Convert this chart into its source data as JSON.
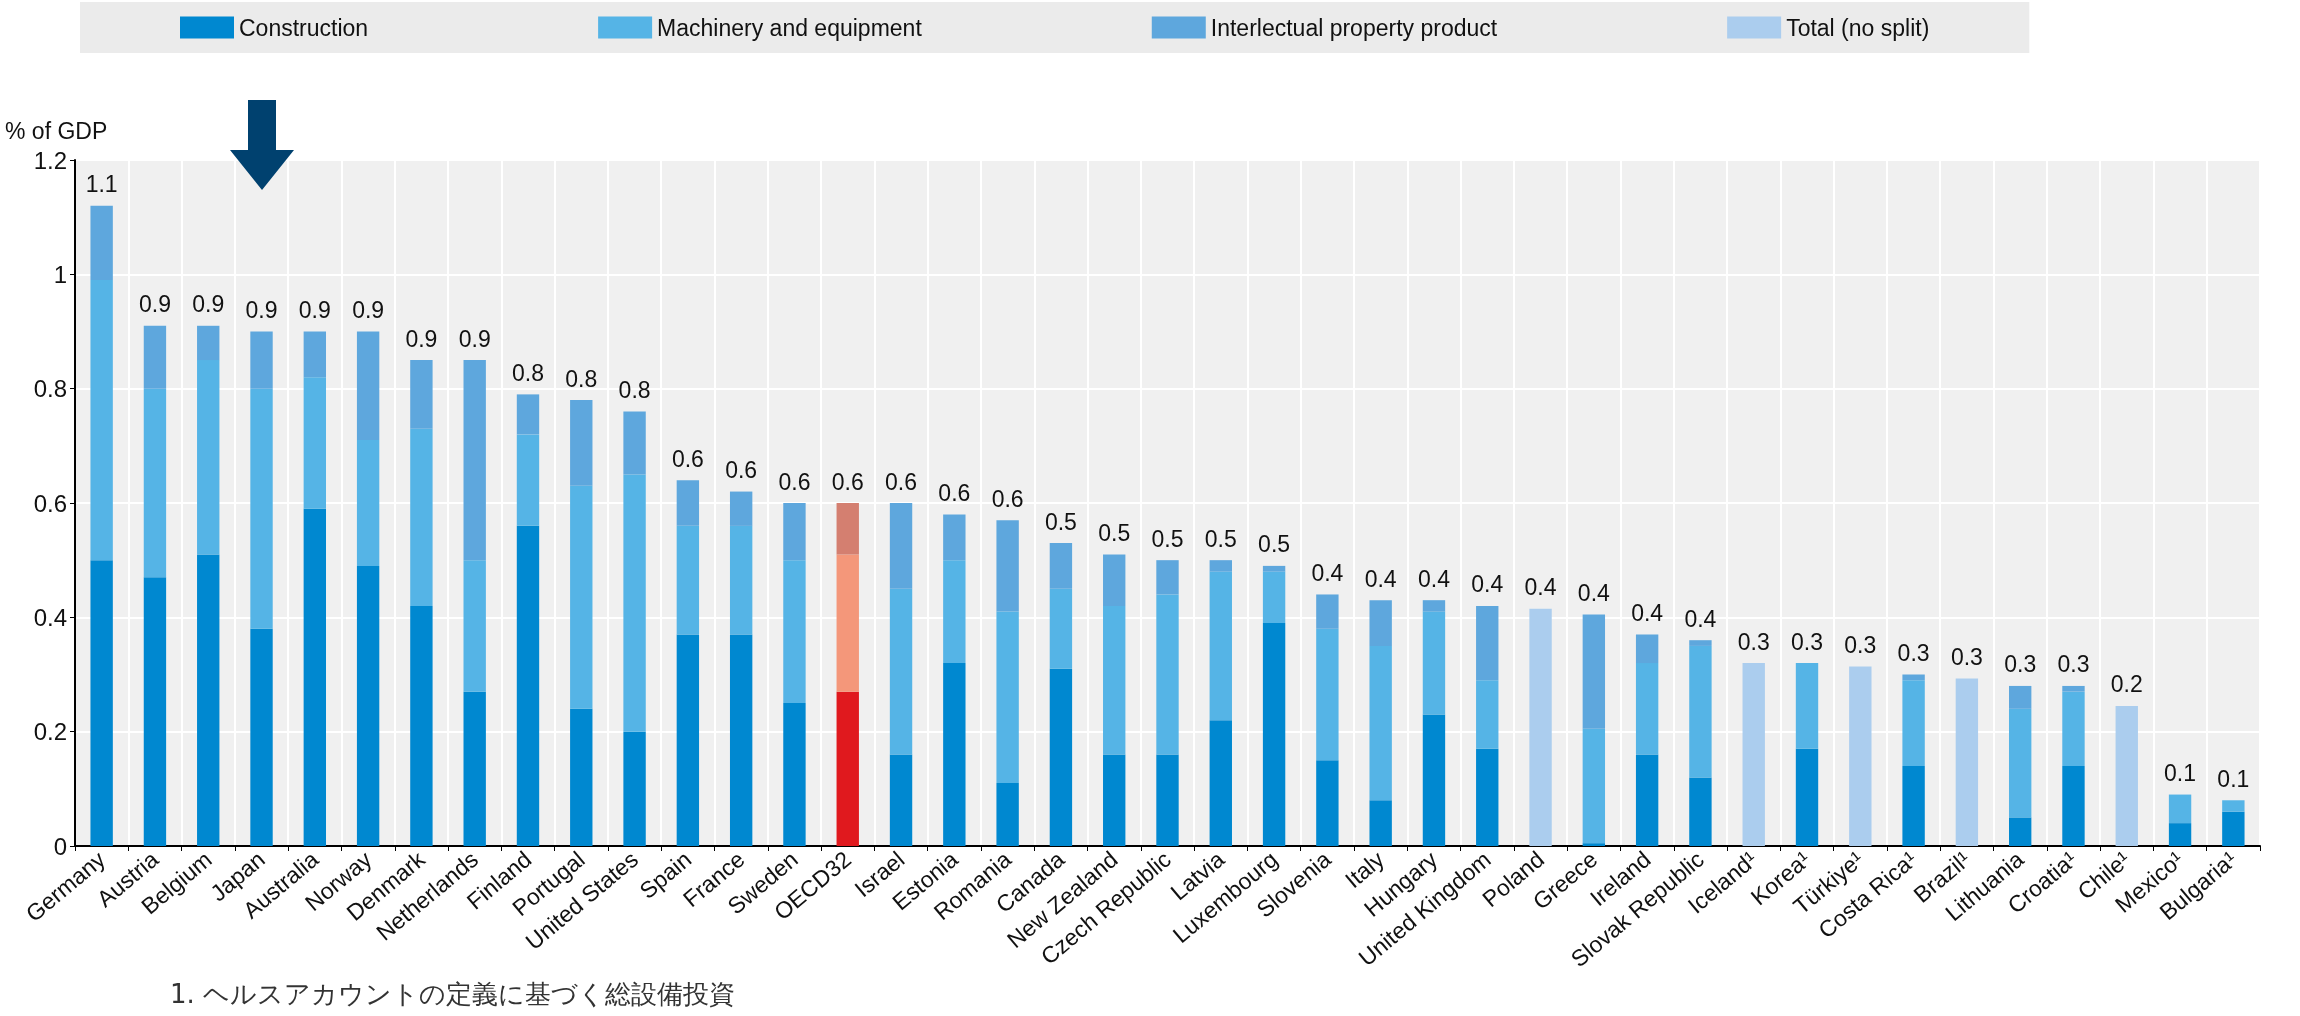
{
  "chart_data": {
    "type": "bar",
    "stacked": true,
    "ylabel": "% of GDP",
    "categories": [
      "Germany",
      "Austria",
      "Belgium",
      "Japan",
      "Australia",
      "Norway",
      "Denmark",
      "Netherlands",
      "Finland",
      "Portugal",
      "United States",
      "Spain",
      "France",
      "Sweden",
      "OECD32",
      "Israel",
      "Estonia",
      "Romania",
      "Canada",
      "New Zealand",
      "Czech Republic",
      "Latvia",
      "Luxembourg",
      "Slovenia",
      "Italy",
      "Hungary",
      "United Kingdom",
      "Poland",
      "Greece",
      "Ireland",
      "Slovak Republic",
      "Iceland¹",
      "Korea¹",
      "Türkiye¹",
      "Costa Rica¹",
      "Brazil¹",
      "Lithuania",
      "Croatia¹",
      "Chile¹",
      "Mexico¹",
      "Bulgaria¹"
    ],
    "series": [
      {
        "name": "Construction",
        "color": "#0088d0",
        "colors": [
          "#0088d0",
          "#0088d0",
          "#0088d0",
          "#0088d0",
          "#0088d0",
          "#0088d0",
          "#0088d0",
          "#0088d0",
          "#0088d0",
          "#0088d0",
          "#0088d0",
          "#0088d0",
          "#0088d0",
          "#0088d0",
          "#e0191e",
          "#0088d0",
          "#0088d0",
          "#0088d0",
          "#0088d0",
          "#0088d0",
          "#0088d0",
          "#0088d0",
          "#0088d0",
          "#0088d0",
          "#0088d0",
          "#0088d0",
          "#0088d0",
          "#0088d0",
          "#0088d0",
          "#0088d0",
          "#0088d0",
          "#0088d0",
          "#0088d0",
          "#0088d0",
          "#0088d0",
          "#0088d0",
          "#0088d0",
          "#0088d0",
          "#0088d0",
          "#0088d0",
          "#0088d0"
        ],
        "values": [
          0.5,
          0.47,
          0.51,
          0.38,
          0.59,
          0.49,
          0.42,
          0.27,
          0.56,
          0.24,
          0.2,
          0.37,
          0.37,
          0.25,
          0.27,
          0.16,
          0.32,
          0.11,
          0.31,
          0.16,
          0.16,
          0.22,
          0.39,
          0.15,
          0.08,
          0.23,
          0.17,
          null,
          0.005,
          0.16,
          0.12,
          null,
          0.17,
          null,
          0.14,
          null,
          0.05,
          0.14,
          null,
          0.04,
          0.06
        ]
      },
      {
        "name": "Machinery and equipment",
        "color": "#55b4e6",
        "colors": [
          "#55b4e6",
          "#55b4e6",
          "#55b4e6",
          "#55b4e6",
          "#55b4e6",
          "#55b4e6",
          "#55b4e6",
          "#55b4e6",
          "#55b4e6",
          "#55b4e6",
          "#55b4e6",
          "#55b4e6",
          "#55b4e6",
          "#55b4e6",
          "#f4977a",
          "#55b4e6",
          "#55b4e6",
          "#55b4e6",
          "#55b4e6",
          "#55b4e6",
          "#55b4e6",
          "#55b4e6",
          "#55b4e6",
          "#55b4e6",
          "#55b4e6",
          "#55b4e6",
          "#55b4e6",
          "#55b4e6",
          "#55b4e6",
          "#55b4e6",
          "#55b4e6",
          "#55b4e6",
          "#55b4e6",
          "#55b4e6",
          "#55b4e6",
          "#55b4e6",
          "#55b4e6",
          "#55b4e6",
          "#55b4e6",
          "#55b4e6",
          "#55b4e6"
        ],
        "values": [
          0.49,
          0.33,
          0.34,
          0.42,
          0.23,
          0.22,
          0.31,
          0.23,
          0.16,
          0.39,
          0.45,
          0.19,
          0.19,
          0.25,
          0.24,
          0.29,
          0.18,
          0.3,
          0.14,
          0.26,
          0.28,
          0.26,
          0.09,
          0.23,
          0.27,
          0.18,
          0.12,
          null,
          0.2,
          0.16,
          0.23,
          null,
          0.15,
          null,
          0.15,
          null,
          0.19,
          0.13,
          null,
          0.05,
          0.02
        ]
      },
      {
        "name": "Interlectual property product",
        "color": "#5ea7dd",
        "colors": [
          "#5ea7dd",
          "#5ea7dd",
          "#5ea7dd",
          "#5ea7dd",
          "#5ea7dd",
          "#5ea7dd",
          "#5ea7dd",
          "#5ea7dd",
          "#5ea7dd",
          "#5ea7dd",
          "#5ea7dd",
          "#5ea7dd",
          "#5ea7dd",
          "#5ea7dd",
          "#d47f70",
          "#5ea7dd",
          "#5ea7dd",
          "#5ea7dd",
          "#5ea7dd",
          "#5ea7dd",
          "#5ea7dd",
          "#5ea7dd",
          "#5ea7dd",
          "#5ea7dd",
          "#5ea7dd",
          "#5ea7dd",
          "#5ea7dd",
          "#5ea7dd",
          "#5ea7dd",
          "#5ea7dd",
          "#5ea7dd",
          "#5ea7dd",
          "#5ea7dd",
          "#5ea7dd",
          "#5ea7dd",
          "#5ea7dd",
          "#5ea7dd",
          "#5ea7dd",
          "#5ea7dd",
          "#5ea7dd",
          "#5ea7dd"
        ],
        "values": [
          0.13,
          0.11,
          0.06,
          0.1,
          0.08,
          0.19,
          0.12,
          0.35,
          0.07,
          0.15,
          0.11,
          0.08,
          0.06,
          0.1,
          0.09,
          0.15,
          0.08,
          0.16,
          0.08,
          0.09,
          0.06,
          0.02,
          0.01,
          0.06,
          0.08,
          0.02,
          0.13,
          null,
          0.2,
          0.05,
          0.01,
          null,
          null,
          null,
          0.01,
          null,
          0.04,
          0.01,
          null,
          null,
          null
        ]
      },
      {
        "name": "Total (no split)",
        "color": "#abcdee",
        "values": [
          null,
          null,
          null,
          null,
          null,
          null,
          null,
          null,
          null,
          null,
          null,
          null,
          null,
          null,
          null,
          null,
          null,
          null,
          null,
          null,
          null,
          null,
          null,
          null,
          null,
          null,
          null,
          0.415,
          null,
          null,
          null,
          0.32,
          null,
          0.314,
          null,
          0.293,
          null,
          null,
          0.245,
          null,
          null
        ]
      }
    ],
    "totals": [
      "1.1",
      "0.9",
      "0.9",
      "0.9",
      "0.9",
      "0.9",
      "0.9",
      "0.9",
      "0.8",
      "0.8",
      "0.8",
      "0.6",
      "0.6",
      "0.6",
      "0.6",
      "0.6",
      "0.6",
      "0.6",
      "0.5",
      "0.5",
      "0.5",
      "0.5",
      "0.5",
      "0.4",
      "0.4",
      "0.4",
      "0.4",
      "0.4",
      "0.4",
      "0.4",
      "0.4",
      "0.3",
      "0.3",
      "0.3",
      "0.3",
      "0.3",
      "0.3",
      "0.3",
      "0.2",
      "0.1",
      "0.1"
    ],
    "ylim": [
      0,
      1.2
    ],
    "yticks": [
      0,
      0.2,
      0.4,
      0.6,
      0.8,
      1,
      1.2
    ],
    "grid": true,
    "legend": "top",
    "annotations": [
      "1. ヘルスアカウントの定義に基づく総設備投資"
    ]
  }
}
